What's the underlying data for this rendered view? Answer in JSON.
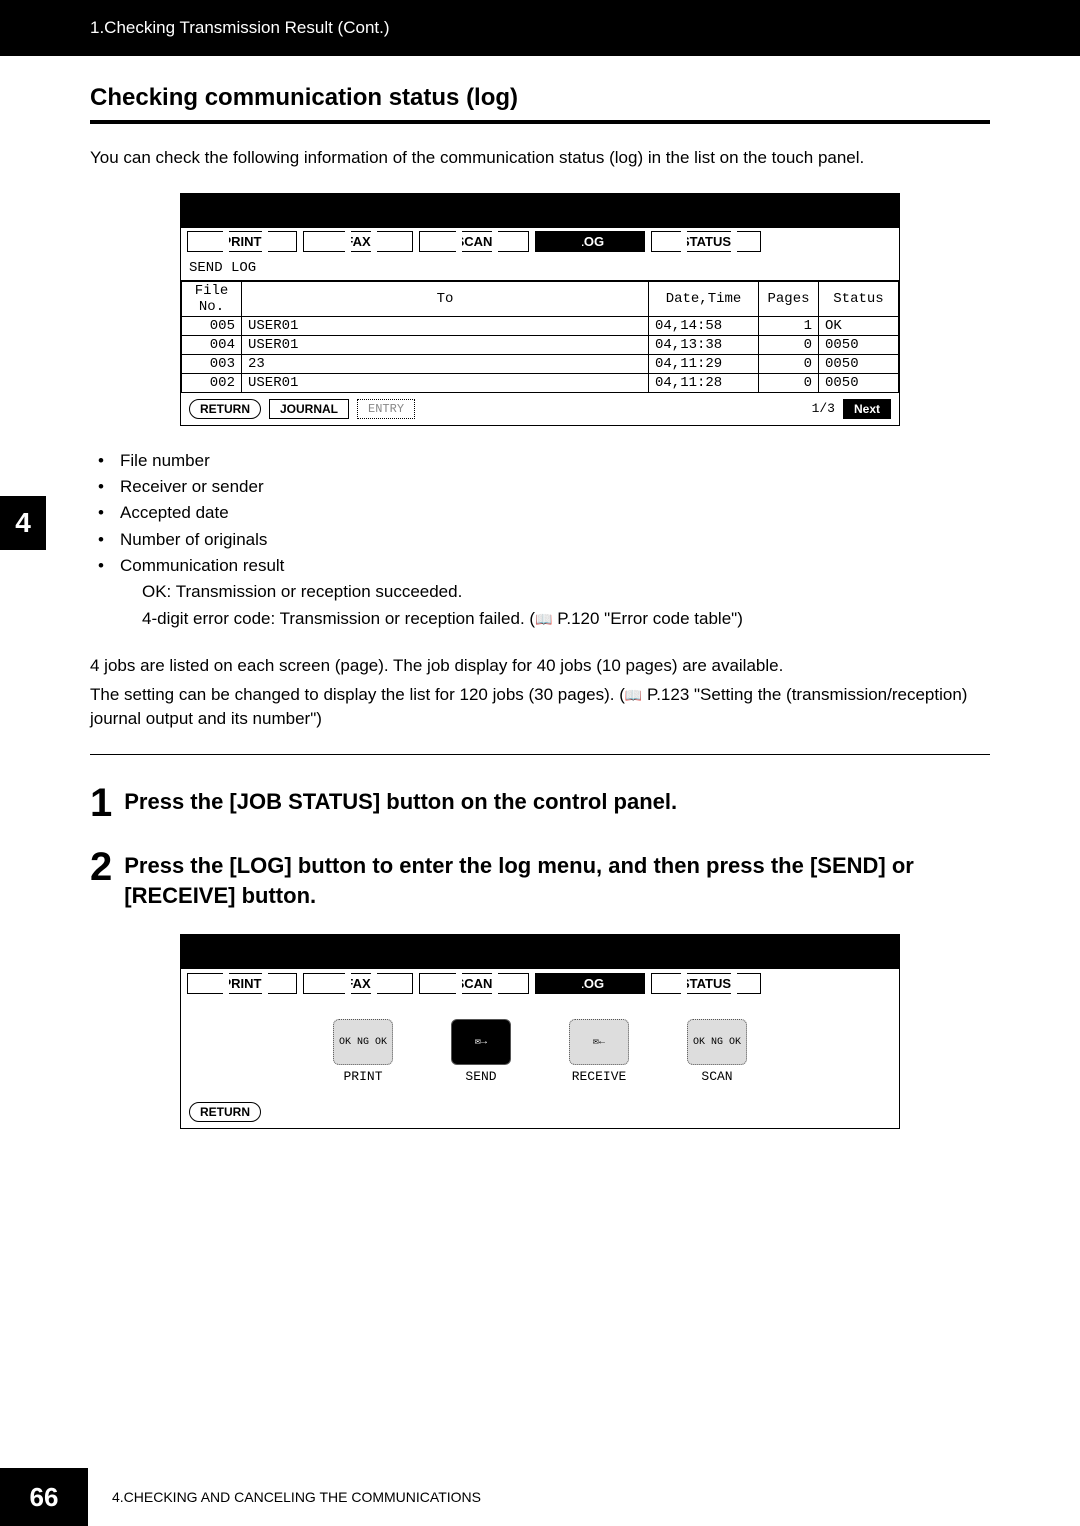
{
  "headerCont": "1.Checking Transmission Result (Cont.)",
  "sectionTitle": "Checking communication status (log)",
  "intro": "You can check the following information of the communication status (log) in the list on the touch panel.",
  "panel1": {
    "tabs": [
      "PRINT",
      "FAX",
      "SCAN",
      "LOG",
      "STATUS"
    ],
    "activeTab": 3,
    "subhead": "SEND LOG",
    "columns": [
      "File No.",
      "To",
      "Date,Time",
      "Pages",
      "Status"
    ],
    "rows": [
      [
        "005",
        "USER01",
        "04,14:58",
        "1",
        "OK"
      ],
      [
        "004",
        "USER01",
        "04,13:38",
        "0",
        "0050"
      ],
      [
        "003",
        "23",
        "04,11:29",
        "0",
        "0050"
      ],
      [
        "002",
        "USER01",
        "04,11:28",
        "0",
        "0050"
      ]
    ],
    "footer": {
      "return": "RETURN",
      "journal": "JOURNAL",
      "entry": "ENTRY",
      "page": "1/3",
      "next": "Next"
    }
  },
  "sideBadge": "4",
  "bullets": {
    "b1": "File number",
    "b2": "Receiver or sender",
    "b3": "Accepted date",
    "b4": "Number of originals",
    "b5": "Communication result",
    "b5a": "OK: Transmission or reception succeeded.",
    "b5b_pre": "4-digit error code: Transmission or reception failed. (",
    "b5b_ref": " P.120 \"Error code table\")"
  },
  "postBullet_line1": "4 jobs are listed on each screen (page). The job display for 40 jobs (10 pages) are available.",
  "postBullet_line2_pre": "The setting can be changed to display the list for 120 jobs (30 pages). (",
  "postBullet_line2_ref": " P.123 \"Setting the (transmission/reception) journal output and its number\")",
  "step1": {
    "num": "1",
    "text": "Press the [JOB STATUS] button on the control panel."
  },
  "step2": {
    "num": "2",
    "text": "Press the [LOG] button to enter the log menu, and then press the [SEND] or [RECEIVE] button."
  },
  "panel2": {
    "tabs": [
      "PRINT",
      "FAX",
      "SCAN",
      "LOG",
      "STATUS"
    ],
    "activeTab": 3,
    "icons": [
      {
        "label": "PRINT",
        "selected": false,
        "glyph": "OK\nNG\nOK"
      },
      {
        "label": "SEND",
        "selected": true,
        "glyph": "✉→"
      },
      {
        "label": "RECEIVE",
        "selected": false,
        "glyph": "✉←"
      },
      {
        "label": "SCAN",
        "selected": false,
        "glyph": "OK\nNG\nOK"
      }
    ],
    "return": "RETURN"
  },
  "footer": {
    "page": "66",
    "chapter": "4.CHECKING AND CANCELING THE COMMUNICATIONS"
  },
  "bookGlyph": "📖"
}
